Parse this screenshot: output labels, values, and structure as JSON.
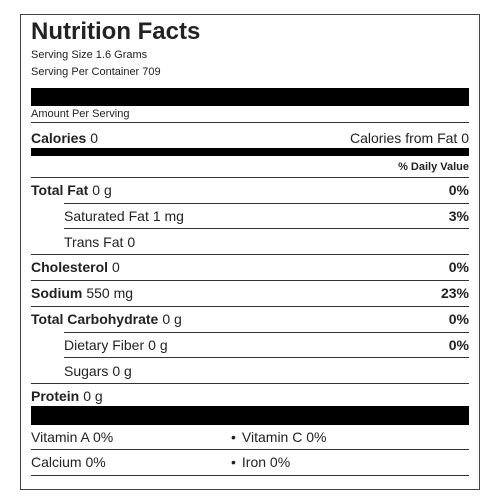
{
  "header": {
    "title": "Nutrition Facts",
    "serving_size": "Serving Size 1.6 Grams",
    "servings_per_container": "Serving Per Container 709"
  },
  "amount_per_serving": "Amount Per Serving",
  "calories": {
    "label": "Calories",
    "value": "0",
    "from_fat": "Calories from Fat 0"
  },
  "daily_value_header": "% Daily Value",
  "nutrients": [
    {
      "name": "Total Fat",
      "amount": "0 g",
      "daily_value": "0%"
    },
    {
      "name": "Saturated Fat",
      "amount": "1 mg",
      "daily_value": "3%"
    },
    {
      "name": "Trans Fat",
      "amount": "0"
    },
    {
      "name": "Cholesterol",
      "amount": "0",
      "daily_value": "0%"
    },
    {
      "name": "Sodium",
      "amount": "550 mg",
      "daily_value": "23%"
    },
    {
      "name": "Total Carbohydrate",
      "amount": "0 g",
      "daily_value": "0%"
    },
    {
      "name": "Dietary Fiber",
      "amount": "0 g",
      "daily_value": "0%"
    },
    {
      "name": "Sugars",
      "amount": "0 g"
    },
    {
      "name": "Protein",
      "amount": "0 g"
    }
  ],
  "vitamins": [
    "Vitamin A 0%",
    "Vitamin C 0%",
    "Calcium 0%",
    "Iron 0%"
  ]
}
